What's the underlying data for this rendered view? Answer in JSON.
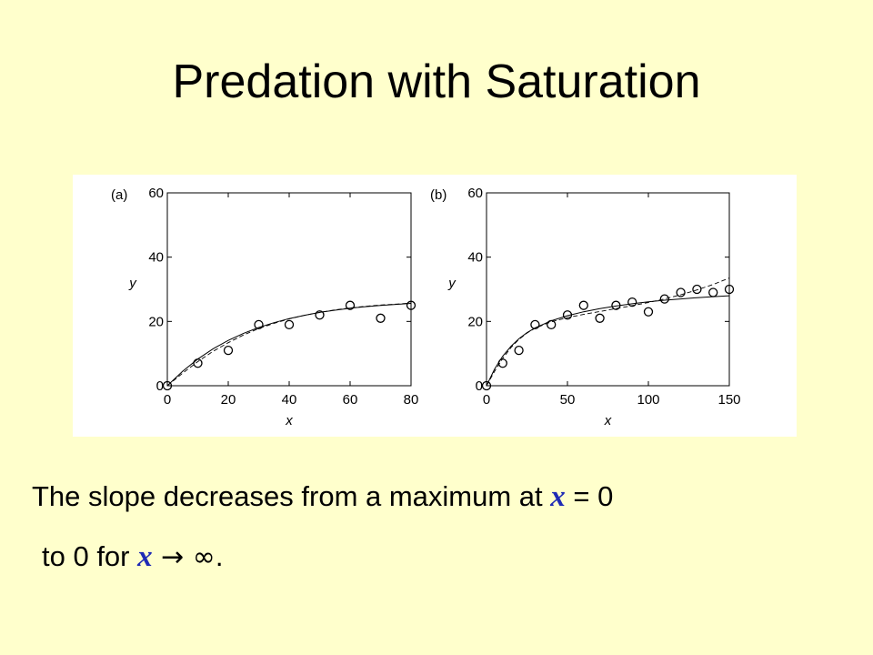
{
  "slide": {
    "title": "Predation with Saturation",
    "caption_line1_text": "The slope decreases from a maximum at ",
    "caption_var": "x",
    "caption_eq": " = 0",
    "caption_line2_text": "to 0 for ",
    "caption_arrow": " → ",
    "caption_infinity": "∞",
    "caption_period": ".",
    "colors": {
      "background": "#ffffcc",
      "math_var": "#1f2bb5",
      "figure_bg": "#ffffff"
    }
  },
  "chart_data": [
    {
      "type": "scatter",
      "panel_label": "(a)",
      "xlabel": "x",
      "ylabel": "y",
      "xlim": [
        0,
        80
      ],
      "ylim": [
        0,
        60
      ],
      "xticks": [
        0,
        20,
        40,
        60,
        80
      ],
      "yticks": [
        0,
        20,
        40,
        60
      ],
      "points": [
        [
          0,
          0
        ],
        [
          10,
          7
        ],
        [
          20,
          11
        ],
        [
          30,
          19
        ],
        [
          40,
          19
        ],
        [
          50,
          22
        ],
        [
          60,
          25
        ],
        [
          70,
          21
        ],
        [
          80,
          25
        ]
      ],
      "fit_solid": [
        [
          0,
          0
        ],
        [
          5,
          4.5
        ],
        [
          10,
          8.3
        ],
        [
          15,
          11.5
        ],
        [
          20,
          14.1
        ],
        [
          25,
          16.3
        ],
        [
          30,
          18.1
        ],
        [
          35,
          19.6
        ],
        [
          40,
          20.9
        ],
        [
          45,
          21.9
        ],
        [
          50,
          22.8
        ],
        [
          55,
          23.5
        ],
        [
          60,
          24.1
        ],
        [
          65,
          24.6
        ],
        [
          70,
          25.0
        ],
        [
          75,
          25.3
        ],
        [
          80,
          25.6
        ]
      ],
      "fit_dashed": [
        [
          0,
          0
        ],
        [
          5,
          3.9
        ],
        [
          10,
          7.5
        ],
        [
          15,
          10.7
        ],
        [
          20,
          13.4
        ],
        [
          25,
          15.8
        ],
        [
          30,
          17.8
        ],
        [
          35,
          19.4
        ],
        [
          40,
          20.8
        ],
        [
          45,
          21.9
        ],
        [
          50,
          22.8
        ],
        [
          55,
          23.6
        ],
        [
          60,
          24.2
        ],
        [
          65,
          24.7
        ],
        [
          70,
          25.1
        ],
        [
          75,
          25.4
        ],
        [
          80,
          25.7
        ]
      ]
    },
    {
      "type": "scatter",
      "panel_label": "(b)",
      "xlabel": "x",
      "ylabel": "y",
      "xlim": [
        0,
        150
      ],
      "ylim": [
        0,
        60
      ],
      "xticks": [
        0,
        50,
        100,
        150
      ],
      "yticks": [
        0,
        20,
        40,
        60
      ],
      "points": [
        [
          0,
          0
        ],
        [
          10,
          7
        ],
        [
          20,
          11
        ],
        [
          30,
          19
        ],
        [
          40,
          19
        ],
        [
          50,
          22
        ],
        [
          60,
          25
        ],
        [
          70,
          21
        ],
        [
          80,
          25
        ],
        [
          90,
          26
        ],
        [
          100,
          23
        ],
        [
          110,
          27
        ],
        [
          120,
          29
        ],
        [
          130,
          30
        ],
        [
          140,
          29
        ],
        [
          150,
          30
        ]
      ],
      "fit_solid": [
        [
          0,
          0
        ],
        [
          5,
          5.2
        ],
        [
          10,
          9.2
        ],
        [
          15,
          12.2
        ],
        [
          20,
          14.6
        ],
        [
          25,
          16.5
        ],
        [
          30,
          18.0
        ],
        [
          40,
          20.2
        ],
        [
          50,
          21.8
        ],
        [
          60,
          23.0
        ],
        [
          70,
          24.0
        ],
        [
          80,
          24.8
        ],
        [
          90,
          25.5
        ],
        [
          100,
          26.1
        ],
        [
          110,
          26.6
        ],
        [
          120,
          27.0
        ],
        [
          130,
          27.4
        ],
        [
          140,
          27.7
        ],
        [
          150,
          28.0
        ]
      ],
      "fit_dashed": [
        [
          0,
          0
        ],
        [
          5,
          4.5
        ],
        [
          10,
          8.5
        ],
        [
          15,
          11.8
        ],
        [
          20,
          14.4
        ],
        [
          25,
          16.4
        ],
        [
          30,
          17.9
        ],
        [
          40,
          19.9
        ],
        [
          50,
          21.2
        ],
        [
          60,
          22.2
        ],
        [
          70,
          23.1
        ],
        [
          80,
          24.0
        ],
        [
          90,
          24.9
        ],
        [
          100,
          25.9
        ],
        [
          110,
          27.0
        ],
        [
          120,
          28.3
        ],
        [
          130,
          29.8
        ],
        [
          140,
          31.5
        ],
        [
          150,
          33.5
        ]
      ]
    }
  ]
}
